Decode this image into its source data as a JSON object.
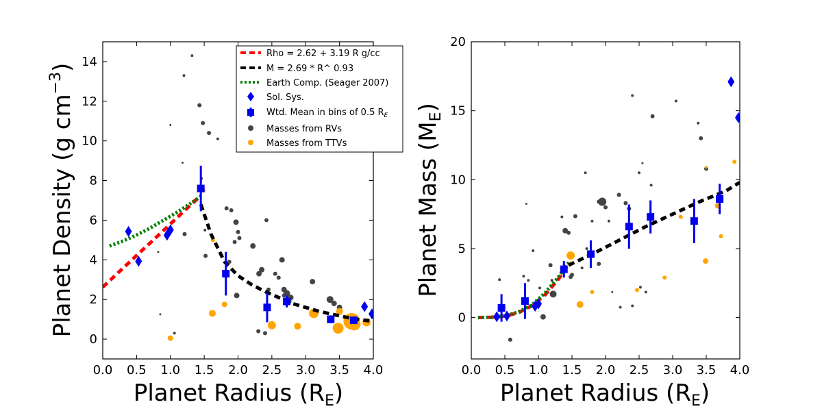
{
  "chart_data": [
    {
      "type": "scatter",
      "xlabel": "Planet Radius (R",
      "xlabel_sub": "E",
      "xlabel_close": ")",
      "ylabel": "Planet Density (g cm",
      "ylabel_sup": "−3",
      "ylabel_close": ")",
      "xlim": [
        0.0,
        4.0
      ],
      "ylim": [
        -1,
        15
      ],
      "xticks": [
        0.0,
        0.5,
        1.0,
        1.5,
        2.0,
        2.5,
        3.0,
        3.5,
        4.0
      ],
      "xtick_labels": [
        "0.0",
        "0.5",
        "1.0",
        "1.5",
        "2.0",
        "2.5",
        "3.0",
        "3.5",
        "4.0"
      ],
      "yticks": [
        0,
        2,
        4,
        6,
        8,
        10,
        12,
        14
      ],
      "ytick_labels": [
        "0",
        "2",
        "4",
        "6",
        "8",
        "10",
        "12",
        "14"
      ],
      "grid": false,
      "legend_position": "top-right",
      "legend": [
        {
          "label": "Rho = 2.62 + 3.19 R g/cc",
          "style": "red-dash"
        },
        {
          "label": "M = 2.69 * R^ 0.93",
          "style": "black-dash"
        },
        {
          "label": "Earth Comp. (Seager 2007)",
          "style": "green-dot"
        },
        {
          "label": "Sol. Sys.",
          "style": "blue-diamond"
        },
        {
          "label": "Wtd. Mean in bins of 0.5 R",
          "label_sub": "E",
          "style": "blue-square"
        },
        {
          "label": "Masses from RVs",
          "style": "gray-circle"
        },
        {
          "label": "Masses from TTVs",
          "style": "orange-circle"
        }
      ],
      "series": [
        {
          "name": "Rho = 2.62 + 3.19 R g/cc",
          "kind": "line",
          "color": "#ff0000",
          "dash": "dashed",
          "x": [
            0.0,
            0.25,
            0.5,
            0.75,
            1.0,
            1.25,
            1.45
          ],
          "y": [
            2.62,
            3.42,
            4.22,
            5.01,
            5.81,
            6.61,
            7.25
          ]
        },
        {
          "name": "M = 2.69 * R^ 0.93",
          "kind": "line",
          "color": "#000000",
          "dash": "dashed",
          "x": [
            1.45,
            1.6,
            1.8,
            2.0,
            2.2,
            2.4,
            2.6,
            2.8,
            3.0,
            3.2,
            3.4,
            3.6,
            3.8,
            4.0
          ],
          "y": [
            6.8,
            5.3,
            3.9,
            3.2,
            2.75,
            2.4,
            2.1,
            1.8,
            1.6,
            1.4,
            1.25,
            1.1,
            0.98,
            0.9
          ]
        },
        {
          "name": "Earth Comp. (Seager 2007)",
          "kind": "line",
          "color": "#008000",
          "dash": "dotted",
          "x": [
            0.1,
            0.3,
            0.5,
            0.7,
            0.9,
            1.1,
            1.3,
            1.45
          ],
          "y": [
            4.7,
            4.95,
            5.25,
            5.6,
            6.0,
            6.4,
            6.85,
            7.2
          ]
        },
        {
          "name": "Sol. Sys.",
          "kind": "marker",
          "marker": "diamond",
          "color": "#0000ee",
          "x": [
            0.38,
            0.53,
            0.95,
            1.0,
            3.87,
            3.98
          ],
          "y": [
            5.43,
            3.93,
            5.24,
            5.51,
            1.64,
            1.27
          ]
        },
        {
          "name": "Wtd. Mean in bins of 0.5 R_E",
          "kind": "errorbar",
          "marker": "square",
          "color": "#0000ee",
          "x": [
            1.45,
            1.82,
            2.43,
            2.72,
            3.37,
            3.71
          ],
          "y": [
            7.6,
            3.3,
            1.6,
            1.9,
            1.0,
            0.95
          ],
          "yerr": [
            1.15,
            1.1,
            0.75,
            0.3,
            0.2,
            0.15
          ]
        },
        {
          "name": "Masses from RVs",
          "kind": "scatter",
          "color": "#444444",
          "x": [
            1.32,
            1.2,
            1.43,
            1.48,
            1.57,
            1.7,
            1.0,
            1.18,
            1.46,
            1.83,
            1.9,
            1.97,
            2.02,
            2.22,
            2.42,
            2.45,
            2.65,
            2.31,
            2.35,
            2.55,
            2.6,
            2.68,
            2.72,
            3.1,
            3.36,
            3.42,
            3.5,
            1.87,
            1.98,
            2.3,
            2.4,
            1.52,
            1.95,
            1.82,
            0.82,
            0.85,
            1.06,
            1.21,
            1.51,
            2.0,
            2.68,
            2.75,
            2.78
          ],
          "y": [
            14.3,
            13.3,
            11.8,
            10.9,
            10.4,
            10.1,
            10.8,
            8.9,
            8.1,
            6.6,
            6.5,
            5.9,
            5.1,
            4.7,
            6.0,
            2.5,
            4.0,
            3.3,
            3.5,
            3.3,
            3.1,
            2.5,
            2.3,
            2.9,
            2.0,
            1.8,
            1.6,
            3.9,
            2.2,
            0.4,
            0.3,
            4.2,
            4.9,
            3.3,
            4.4,
            1.25,
            0.3,
            5.3,
            5.5,
            5.4,
            2.2,
            1.9,
            2.1
          ],
          "sizes": [
            2,
            2,
            3,
            3,
            3,
            2,
            1.5,
            1.5,
            2,
            3,
            3,
            4,
            3,
            4,
            3,
            3,
            4,
            4,
            4,
            3,
            3,
            4,
            5,
            4,
            5,
            4,
            4,
            3,
            4,
            3,
            3,
            3,
            3,
            3,
            1.5,
            1.5,
            2,
            3,
            2,
            3,
            3,
            4,
            4
          ]
        },
        {
          "name": "Masses from TTVs",
          "kind": "scatter",
          "color": "#ffa500",
          "x": [
            1.0,
            1.62,
            1.8,
            2.5,
            2.88,
            3.12,
            3.48,
            3.5,
            3.68,
            3.72,
            3.9,
            1.49,
            1.63
          ],
          "y": [
            0.05,
            1.3,
            1.75,
            0.7,
            0.65,
            1.3,
            0.55,
            1.4,
            0.9,
            0.75,
            0.85,
            7.5,
            5.0
          ],
          "sizes": [
            4,
            5,
            4,
            6,
            5,
            7,
            8,
            5,
            12,
            9,
            6,
            3,
            3
          ]
        }
      ]
    },
    {
      "type": "scatter",
      "xlabel": "Planet Radius (R",
      "xlabel_sub": "E",
      "xlabel_close": ")",
      "ylabel": "Planet Mass (M",
      "ylabel_sub": "E",
      "ylabel_close": ")",
      "xlim": [
        0.0,
        4.0
      ],
      "ylim": [
        -3,
        20
      ],
      "xticks": [
        0.0,
        0.5,
        1.0,
        1.5,
        2.0,
        2.5,
        3.0,
        3.5,
        4.0
      ],
      "xtick_labels": [
        "0.0",
        "0.5",
        "1.0",
        "1.5",
        "2.0",
        "2.5",
        "3.0",
        "3.5",
        "4.0"
      ],
      "yticks": [
        0,
        5,
        10,
        15,
        20
      ],
      "ytick_labels": [
        "0",
        "5",
        "10",
        "15",
        "20"
      ],
      "grid": false,
      "series": [
        {
          "name": "Rho = 2.62 + 3.19 R g/cc",
          "kind": "line",
          "color": "#ff0000",
          "dash": "dashed",
          "x": [
            0.1,
            0.3,
            0.5,
            0.7,
            0.9,
            1.1,
            1.3,
            1.45
          ],
          "y": [
            0.0,
            0.02,
            0.11,
            0.35,
            0.85,
            1.65,
            2.8,
            3.9
          ]
        },
        {
          "name": "Earth Comp. (Seager 2007)",
          "kind": "line",
          "color": "#008000",
          "dash": "dotted",
          "x": [
            0.1,
            0.3,
            0.5,
            0.7,
            0.9,
            1.1,
            1.3,
            1.45
          ],
          "y": [
            0.0,
            0.02,
            0.12,
            0.4,
            0.9,
            1.8,
            2.95,
            4.0
          ]
        },
        {
          "name": "M = 2.69 * R^ 0.93",
          "kind": "line",
          "color": "#000000",
          "dash": "dashed",
          "x": [
            1.45,
            1.8,
            2.2,
            2.6,
            3.0,
            3.4,
            3.8,
            4.0
          ],
          "y": [
            3.8,
            4.6,
            5.6,
            6.6,
            7.5,
            8.4,
            9.2,
            9.8
          ]
        },
        {
          "name": "Sol. Sys.",
          "kind": "marker",
          "marker": "diamond",
          "color": "#0000ee",
          "x": [
            0.38,
            0.53,
            0.95,
            1.0,
            3.87,
            3.98
          ],
          "y": [
            0.06,
            0.11,
            0.82,
            1.0,
            17.1,
            14.5
          ]
        },
        {
          "name": "Wtd. Mean in bins of 0.5 R_E",
          "kind": "errorbar",
          "marker": "square",
          "color": "#0000ee",
          "x": [
            0.45,
            0.8,
            1.38,
            1.78,
            2.35,
            2.67,
            3.32,
            3.7
          ],
          "y": [
            0.7,
            1.2,
            3.5,
            4.6,
            6.6,
            7.3,
            7.0,
            8.6
          ],
          "yerr": [
            1.0,
            1.3,
            0.6,
            1.0,
            1.6,
            1.2,
            1.6,
            1.1
          ]
        },
        {
          "name": "Masses from RVs",
          "kind": "scatter",
          "color": "#444444",
          "x": [
            0.42,
            0.58,
            0.82,
            0.78,
            0.85,
            0.92,
            1.02,
            1.07,
            1.18,
            1.22,
            1.35,
            1.4,
            1.45,
            1.48,
            1.55,
            1.65,
            1.7,
            1.9,
            1.95,
            2.0,
            2.05,
            2.1,
            2.2,
            2.3,
            2.35,
            2.4,
            2.5,
            2.55,
            2.68,
            2.7,
            2.4,
            2.6,
            3.05,
            3.38,
            3.42,
            3.5,
            1.2,
            1.5,
            1.9,
            1.72,
            1.8,
            2.22,
            2.52
          ],
          "y": [
            2.75,
            -1.6,
            8.25,
            3.0,
            2.7,
            4.85,
            2.15,
            0.05,
            3.8,
            1.7,
            7.3,
            6.3,
            6.15,
            2.95,
            7.35,
            3.6,
            10.5,
            8.4,
            8.4,
            8.0,
            7.0,
            1.85,
            8.9,
            8.3,
            7.9,
            16.1,
            10.5,
            11.2,
            9.6,
            14.6,
            0.85,
            1.85,
            15.7,
            14.1,
            13.0,
            10.8,
            2.7,
            3.1,
            3.9,
            5.0,
            7.0,
            0.75,
            2.2
          ],
          "sizes": [
            2,
            3,
            1.5,
            2,
            2,
            2,
            2,
            4,
            3,
            5,
            2,
            4,
            3,
            3,
            3,
            2,
            2,
            3,
            6,
            3,
            2,
            1.5,
            3,
            3,
            3,
            2,
            2,
            1.5,
            2,
            3,
            2,
            2,
            2,
            2,
            3,
            3,
            2,
            3,
            3,
            2,
            2,
            2,
            2
          ]
        },
        {
          "name": "Masses from TTVs",
          "kind": "scatter",
          "color": "#ffa500",
          "x": [
            1.48,
            1.62,
            1.8,
            2.47,
            2.88,
            3.12,
            3.49,
            3.67,
            3.72,
            3.92,
            3.5,
            1.46
          ],
          "y": [
            4.5,
            0.95,
            1.85,
            2.0,
            2.9,
            7.3,
            4.1,
            8.1,
            5.9,
            11.3,
            10.9,
            3.9
          ],
          "sizes": [
            6,
            5,
            3,
            3,
            3,
            3,
            4,
            4,
            3,
            3,
            2,
            3
          ]
        }
      ]
    }
  ]
}
